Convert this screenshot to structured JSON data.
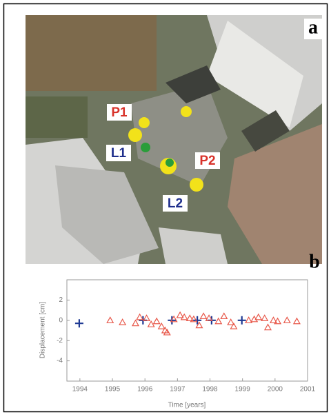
{
  "panel_labels": [
    "a",
    "b"
  ],
  "photo_labels": [
    {
      "text": "P1",
      "color": "#d8322a"
    },
    {
      "text": "L1",
      "color": "#1f2f8c"
    },
    {
      "text": "P2",
      "color": "#d8322a"
    },
    {
      "text": "L2",
      "color": "#1f2f8c"
    }
  ],
  "chart_data": {
    "type": "scatter",
    "xlabel": "Time [years]",
    "ylabel": "Displacement [cm]",
    "xlim": [
      1993.6,
      2001
    ],
    "xticks": [
      1994,
      1995,
      1996,
      1997,
      1998,
      1999,
      2000,
      2001
    ],
    "ylim": [
      -6,
      4
    ],
    "yticks": [
      2,
      0,
      -2,
      -4
    ],
    "series": [
      {
        "color": "#1f3a94",
        "marker": "cross",
        "x": [
          1993.98,
          1995.94,
          1996.83,
          1997.61,
          1998.05,
          1998.98
        ],
        "values": [
          -0.3,
          0,
          0,
          0,
          0,
          0
        ]
      },
      {
        "color": "#e8584a",
        "marker": "triangle",
        "x": [
          1994.93,
          1995.31,
          1995.71,
          1995.84,
          1996.05,
          1996.19,
          1996.36,
          1996.51,
          1996.62,
          1996.68,
          1996.89,
          1997.08,
          1997.21,
          1997.38,
          1997.5,
          1997.67,
          1997.8,
          1997.97,
          1998.26,
          1998.43,
          1998.64,
          1998.73,
          1999.19,
          1999.36,
          1999.49,
          1999.68,
          1999.78,
          1999.95,
          2000.08,
          2000.37,
          2000.67
        ],
        "values": [
          0,
          -0.2,
          -0.3,
          0.3,
          0.2,
          -0.4,
          -0.1,
          -0.6,
          -1.0,
          -1.2,
          0.1,
          0.5,
          0.3,
          0.2,
          0.1,
          -0.5,
          0.4,
          0.2,
          -0.1,
          0.4,
          -0.2,
          -0.6,
          0,
          0.1,
          0.3,
          0.2,
          -0.7,
          0,
          -0.1,
          0,
          -0.1
        ]
      }
    ]
  }
}
